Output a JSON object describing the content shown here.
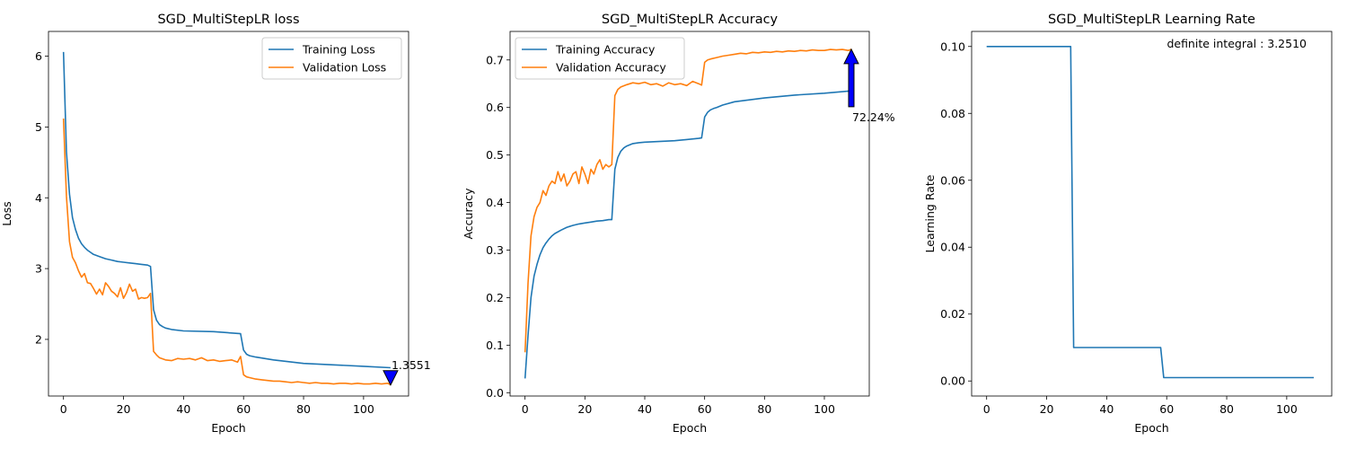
{
  "chart_data": [
    {
      "type": "line",
      "title": "SGD_MultiStepLR loss",
      "xlabel": "Epoch",
      "ylabel": "Loss",
      "xlim": [
        -5,
        115
      ],
      "ylim": [
        1.2,
        6.35
      ],
      "xticks": [
        0,
        20,
        40,
        60,
        80,
        100
      ],
      "yticks": [
        2,
        3,
        4,
        5,
        6
      ],
      "legend": "top-right",
      "annotation": {
        "text": "1.3551",
        "x": 109,
        "y": 1.3551,
        "marker": "down-triangle"
      },
      "series": [
        {
          "name": "Training Loss",
          "color": "#1f77b4",
          "x": [
            0,
            1,
            2,
            3,
            4,
            5,
            6,
            7,
            8,
            9,
            10,
            12,
            14,
            16,
            18,
            20,
            22,
            24,
            26,
            28,
            29,
            30,
            31,
            32,
            33,
            34,
            36,
            40,
            50,
            59,
            60,
            61,
            62,
            64,
            70,
            80,
            90,
            100,
            109
          ],
          "y": [
            6.06,
            4.65,
            4.05,
            3.72,
            3.55,
            3.43,
            3.35,
            3.3,
            3.26,
            3.23,
            3.2,
            3.17,
            3.14,
            3.12,
            3.1,
            3.09,
            3.08,
            3.07,
            3.06,
            3.05,
            3.03,
            2.42,
            2.27,
            2.21,
            2.18,
            2.16,
            2.14,
            2.12,
            2.11,
            2.08,
            1.85,
            1.79,
            1.77,
            1.75,
            1.71,
            1.66,
            1.64,
            1.62,
            1.6
          ]
        },
        {
          "name": "Validation Loss",
          "color": "#ff7f0e",
          "x": [
            0,
            1,
            2,
            3,
            4,
            5,
            6,
            7,
            8,
            9,
            10,
            11,
            12,
            13,
            14,
            15,
            16,
            17,
            18,
            19,
            20,
            21,
            22,
            23,
            24,
            25,
            26,
            27,
            28,
            29,
            30,
            31,
            32,
            34,
            36,
            38,
            40,
            42,
            44,
            46,
            48,
            50,
            52,
            54,
            56,
            58,
            59,
            60,
            61,
            62,
            64,
            66,
            68,
            70,
            72,
            74,
            76,
            78,
            80,
            82,
            84,
            86,
            88,
            90,
            92,
            94,
            96,
            98,
            100,
            102,
            104,
            106,
            108,
            109
          ],
          "y": [
            5.12,
            4.02,
            3.38,
            3.16,
            3.08,
            2.97,
            2.88,
            2.93,
            2.8,
            2.79,
            2.72,
            2.64,
            2.71,
            2.63,
            2.8,
            2.75,
            2.68,
            2.65,
            2.6,
            2.73,
            2.58,
            2.66,
            2.78,
            2.68,
            2.71,
            2.57,
            2.59,
            2.58,
            2.59,
            2.65,
            1.83,
            1.78,
            1.74,
            1.71,
            1.7,
            1.73,
            1.72,
            1.73,
            1.71,
            1.74,
            1.7,
            1.71,
            1.69,
            1.7,
            1.71,
            1.68,
            1.76,
            1.5,
            1.47,
            1.46,
            1.44,
            1.43,
            1.42,
            1.41,
            1.41,
            1.4,
            1.39,
            1.4,
            1.39,
            1.38,
            1.39,
            1.38,
            1.38,
            1.37,
            1.38,
            1.38,
            1.37,
            1.38,
            1.37,
            1.37,
            1.38,
            1.37,
            1.38,
            1.36
          ]
        }
      ]
    },
    {
      "type": "line",
      "title": "SGD_MultiStepLR Accuracy",
      "xlabel": "Epoch",
      "ylabel": "Accuracy",
      "xlim": [
        -5,
        115
      ],
      "ylim": [
        -0.007,
        0.76
      ],
      "xticks": [
        0,
        20,
        40,
        60,
        80,
        100
      ],
      "yticks": [
        0.0,
        0.1,
        0.2,
        0.3,
        0.4,
        0.5,
        0.6,
        0.7
      ],
      "ytick_labels": [
        "0.0",
        "0.1",
        "0.2",
        "0.3",
        "0.4",
        "0.5",
        "0.6",
        "0.7"
      ],
      "legend": "top-left",
      "annotation": {
        "text": "72.24%",
        "x": 109,
        "y": 0.7224,
        "marker": "up-arrow"
      },
      "series": [
        {
          "name": "Training Accuracy",
          "color": "#1f77b4",
          "x": [
            0,
            1,
            2,
            3,
            4,
            5,
            6,
            7,
            8,
            9,
            10,
            12,
            14,
            16,
            18,
            20,
            22,
            24,
            26,
            28,
            29,
            30,
            31,
            32,
            33,
            34,
            36,
            38,
            40,
            50,
            58,
            59,
            60,
            61,
            62,
            63,
            64,
            66,
            70,
            80,
            90,
            100,
            109
          ],
          "y": [
            0.03,
            0.12,
            0.2,
            0.245,
            0.27,
            0.29,
            0.305,
            0.315,
            0.323,
            0.33,
            0.335,
            0.342,
            0.348,
            0.352,
            0.355,
            0.357,
            0.359,
            0.361,
            0.362,
            0.364,
            0.364,
            0.47,
            0.495,
            0.508,
            0.515,
            0.519,
            0.524,
            0.526,
            0.527,
            0.53,
            0.535,
            0.536,
            0.58,
            0.59,
            0.595,
            0.598,
            0.6,
            0.605,
            0.612,
            0.62,
            0.626,
            0.63,
            0.635
          ]
        },
        {
          "name": "Validation Accuracy",
          "color": "#ff7f0e",
          "x": [
            0,
            1,
            2,
            3,
            4,
            5,
            6,
            7,
            8,
            9,
            10,
            11,
            12,
            13,
            14,
            15,
            16,
            17,
            18,
            19,
            20,
            21,
            22,
            23,
            24,
            25,
            26,
            27,
            28,
            29,
            30,
            31,
            32,
            34,
            36,
            38,
            40,
            42,
            44,
            46,
            48,
            50,
            52,
            54,
            56,
            58,
            59,
            60,
            61,
            62,
            64,
            66,
            68,
            70,
            72,
            74,
            76,
            78,
            80,
            82,
            84,
            86,
            88,
            90,
            92,
            94,
            96,
            98,
            100,
            102,
            104,
            106,
            108,
            109
          ],
          "y": [
            0.085,
            0.23,
            0.33,
            0.37,
            0.39,
            0.4,
            0.425,
            0.415,
            0.435,
            0.445,
            0.44,
            0.465,
            0.445,
            0.46,
            0.435,
            0.445,
            0.46,
            0.465,
            0.44,
            0.475,
            0.46,
            0.44,
            0.47,
            0.46,
            0.48,
            0.49,
            0.47,
            0.48,
            0.475,
            0.48,
            0.625,
            0.638,
            0.643,
            0.648,
            0.652,
            0.65,
            0.653,
            0.648,
            0.65,
            0.645,
            0.652,
            0.648,
            0.65,
            0.646,
            0.655,
            0.65,
            0.647,
            0.695,
            0.7,
            0.702,
            0.705,
            0.708,
            0.71,
            0.712,
            0.714,
            0.713,
            0.716,
            0.715,
            0.717,
            0.716,
            0.718,
            0.717,
            0.719,
            0.718,
            0.72,
            0.719,
            0.721,
            0.72,
            0.72,
            0.722,
            0.721,
            0.722,
            0.72,
            0.7224
          ]
        }
      ]
    },
    {
      "type": "line",
      "title": "SGD_MultiStepLR Learning Rate",
      "xlabel": "Epoch",
      "ylabel": "Learning Rate",
      "xlim": [
        -5,
        115
      ],
      "ylim": [
        -0.0045,
        0.1045
      ],
      "xticks": [
        0,
        20,
        40,
        60,
        80,
        100
      ],
      "yticks": [
        0.0,
        0.02,
        0.04,
        0.06,
        0.08,
        0.1
      ],
      "ytick_labels": [
        "0.00",
        "0.02",
        "0.04",
        "0.06",
        "0.08",
        "0.10"
      ],
      "legend": "none",
      "annotation": {
        "text": "definite integral : 3.2510"
      },
      "series": [
        {
          "color": "#1f77b4",
          "x": [
            0,
            28,
            29,
            58,
            59,
            109
          ],
          "y": [
            0.1,
            0.1,
            0.01,
            0.01,
            0.001,
            0.001
          ]
        }
      ]
    }
  ]
}
